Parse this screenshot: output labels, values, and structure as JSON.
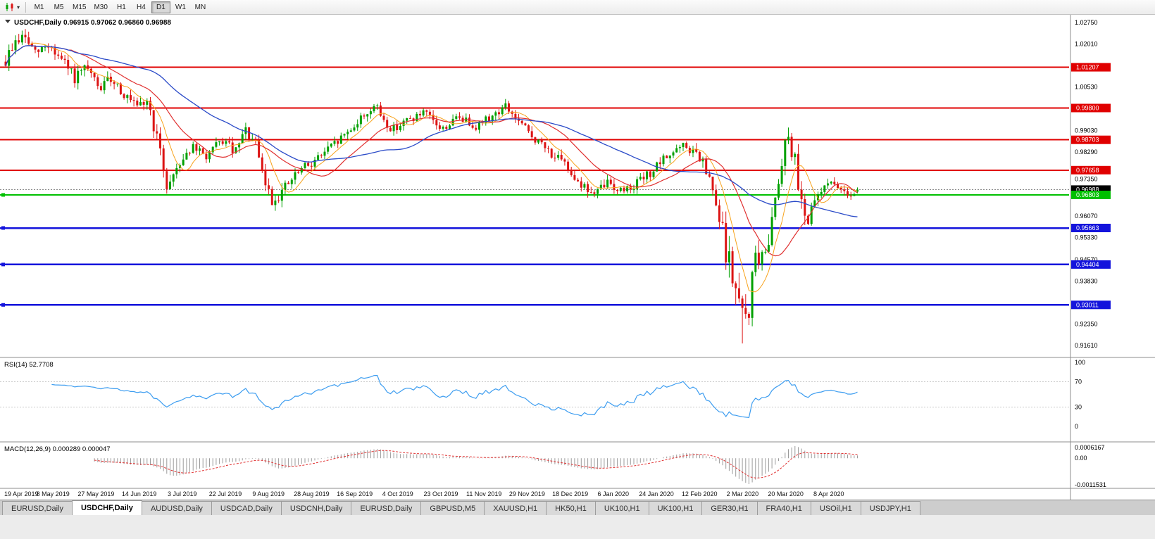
{
  "toolbar": {
    "timeframes": [
      {
        "label": "M1",
        "active": false
      },
      {
        "label": "M5",
        "active": false
      },
      {
        "label": "M15",
        "active": false
      },
      {
        "label": "M30",
        "active": false
      },
      {
        "label": "H1",
        "active": false
      },
      {
        "label": "H4",
        "active": false
      },
      {
        "label": "D1",
        "active": true
      },
      {
        "label": "W1",
        "active": false
      },
      {
        "label": "MN",
        "active": false
      }
    ]
  },
  "chart": {
    "title_line": "USDCHF,Daily 0.96915 0.97062 0.96860 0.96988",
    "rsi_label_line": "RSI(14) 52.7708",
    "macd_label_line": "MACD(12,26,9) 0.000289 0.000047"
  },
  "chart_data": {
    "type": "candlestick",
    "symbol": "USDCHF",
    "timeframe": "Daily",
    "last_candle": {
      "o": 0.96915,
      "h": 0.97062,
      "l": 0.9686,
      "c": 0.96988
    },
    "current_price": 0.96988,
    "low_extreme": 0.9168,
    "price_axis": {
      "min": 0.9161,
      "max": 1.0275,
      "ticks": [
        "1.02750",
        "1.02010",
        "1.00530",
        "0.99030",
        "0.98290",
        "0.97350",
        "0.96070",
        "0.95330",
        "0.94570",
        "0.93830",
        "0.92350",
        "0.91610"
      ]
    },
    "h_lines": {
      "red": [
        1.01207,
        0.998,
        0.98703,
        0.97658
      ],
      "green": [
        0.96803
      ],
      "blue": [
        0.95663,
        0.94404,
        0.93011
      ]
    },
    "n_candles": 260,
    "price_path": [
      [
        0.0,
        1.014,
        0.006
      ],
      [
        0.01,
        1.0205,
        0.0055
      ],
      [
        0.022,
        1.0228,
        0.005
      ],
      [
        0.035,
        1.0165,
        0.005
      ],
      [
        0.05,
        1.02,
        0.005
      ],
      [
        0.068,
        1.0135,
        0.005
      ],
      [
        0.082,
        1.008,
        0.0055
      ],
      [
        0.095,
        1.0115,
        0.005
      ],
      [
        0.11,
        1.0045,
        0.005
      ],
      [
        0.125,
        1.0085,
        0.0048
      ],
      [
        0.142,
        1.0015,
        0.0048
      ],
      [
        0.155,
        0.9975,
        0.0048
      ],
      [
        0.166,
        1.0008,
        0.0045
      ],
      [
        0.178,
        0.987,
        0.006
      ],
      [
        0.19,
        0.9705,
        0.006
      ],
      [
        0.202,
        0.9785,
        0.005
      ],
      [
        0.218,
        0.9845,
        0.0042
      ],
      [
        0.235,
        0.9812,
        0.0042
      ],
      [
        0.255,
        0.9868,
        0.0042
      ],
      [
        0.27,
        0.9825,
        0.0045
      ],
      [
        0.281,
        0.9902,
        0.0048
      ],
      [
        0.293,
        0.9855,
        0.005
      ],
      [
        0.302,
        0.9745,
        0.006
      ],
      [
        0.313,
        0.9658,
        0.0058
      ],
      [
        0.328,
        0.9705,
        0.005
      ],
      [
        0.345,
        0.9762,
        0.0045
      ],
      [
        0.365,
        0.9805,
        0.004
      ],
      [
        0.385,
        0.9852,
        0.004
      ],
      [
        0.405,
        0.9908,
        0.004
      ],
      [
        0.422,
        0.9958,
        0.004
      ],
      [
        0.433,
        0.9988,
        0.004
      ],
      [
        0.452,
        0.9905,
        0.004
      ],
      [
        0.472,
        0.9938,
        0.0036
      ],
      [
        0.492,
        0.9962,
        0.0034
      ],
      [
        0.512,
        0.9905,
        0.0038
      ],
      [
        0.532,
        0.995,
        0.0034
      ],
      [
        0.552,
        0.9918,
        0.0034
      ],
      [
        0.572,
        0.9955,
        0.0036
      ],
      [
        0.587,
        0.9986,
        0.004
      ],
      [
        0.603,
        0.9928,
        0.004
      ],
      [
        0.623,
        0.9868,
        0.004
      ],
      [
        0.643,
        0.9818,
        0.004
      ],
      [
        0.662,
        0.9768,
        0.0042
      ],
      [
        0.677,
        0.9712,
        0.0048
      ],
      [
        0.692,
        0.9678,
        0.0048
      ],
      [
        0.706,
        0.9726,
        0.004
      ],
      [
        0.722,
        0.9695,
        0.004
      ],
      [
        0.738,
        0.9716,
        0.004
      ],
      [
        0.754,
        0.9748,
        0.004
      ],
      [
        0.768,
        0.9788,
        0.004
      ],
      [
        0.782,
        0.9828,
        0.004
      ],
      [
        0.796,
        0.9846,
        0.0042
      ],
      [
        0.81,
        0.9824,
        0.005
      ],
      [
        0.823,
        0.9758,
        0.007
      ],
      [
        0.836,
        0.9615,
        0.01
      ],
      [
        0.849,
        0.9448,
        0.012
      ],
      [
        0.859,
        0.9328,
        0.013
      ],
      [
        0.866,
        0.9242,
        0.014
      ],
      [
        0.873,
        0.9295,
        0.012
      ],
      [
        0.881,
        0.9492,
        0.012
      ],
      [
        0.889,
        0.9438,
        0.01
      ],
      [
        0.897,
        0.9562,
        0.01
      ],
      [
        0.905,
        0.9702,
        0.01
      ],
      [
        0.913,
        0.9845,
        0.009
      ],
      [
        0.919,
        0.9892,
        0.008
      ],
      [
        0.927,
        0.9788,
        0.008
      ],
      [
        0.935,
        0.9655,
        0.008
      ],
      [
        0.943,
        0.9588,
        0.007
      ],
      [
        0.951,
        0.9662,
        0.006
      ],
      [
        0.959,
        0.97,
        0.005
      ],
      [
        0.967,
        0.9745,
        0.005
      ],
      [
        0.975,
        0.9688,
        0.0048
      ],
      [
        0.983,
        0.9712,
        0.0042
      ],
      [
        0.991,
        0.9678,
        0.004
      ],
      [
        1.0,
        0.9699,
        0.004
      ]
    ],
    "x_axis_dates": [
      "19 Apr 2019",
      "8 May 2019",
      "27 May 2019",
      "14 Jun 2019",
      "3 Jul 2019",
      "22 Jul 2019",
      "9 Aug 2019",
      "28 Aug 2019",
      "16 Sep 2019",
      "4 Oct 2019",
      "23 Oct 2019",
      "11 Nov 2019",
      "29 Nov 2019",
      "18 Dec 2019",
      "6 Jan 2020",
      "24 Jan 2020",
      "12 Feb 2020",
      "2 Mar 2020",
      "20 Mar 2020",
      "8 Apr 2020"
    ],
    "rsi": {
      "label": "RSI(14)",
      "value": "52.7708",
      "levels": [
        "100",
        "70",
        "30",
        "0"
      ]
    },
    "macd": {
      "label": "MACD(12,26,9)",
      "values": "0.000289 0.000047",
      "axis": [
        "0.0006167",
        "0.00",
        "-0.0011531"
      ]
    }
  },
  "colors": {
    "candle_up": "#00a000",
    "candle_down": "#dc1414",
    "ma_fast": "#f7a21b",
    "ma_mid": "#e03030",
    "ma_slow": "#2b4bc8",
    "line_red": "#e00000",
    "line_green": "#00c000",
    "line_blue": "#1414dc",
    "rsi_line": "#3d9df0",
    "macd_hist": "#9b9b9b",
    "macd_signal": "#e03030"
  },
  "tabs": [
    {
      "label": "EURUSD,Daily",
      "active": false
    },
    {
      "label": "USDCHF,Daily",
      "active": true
    },
    {
      "label": "AUDUSD,Daily",
      "active": false
    },
    {
      "label": "USDCAD,Daily",
      "active": false
    },
    {
      "label": "USDCNH,Daily",
      "active": false
    },
    {
      "label": "EURUSD,Daily",
      "active": false
    },
    {
      "label": "GBPUSD,M5",
      "active": false
    },
    {
      "label": "XAUUSD,H1",
      "active": false
    },
    {
      "label": "HK50,H1",
      "active": false
    },
    {
      "label": "UK100,H1",
      "active": false
    },
    {
      "label": "UK100,H1",
      "active": false
    },
    {
      "label": "GER30,H1",
      "active": false
    },
    {
      "label": "FRA40,H1",
      "active": false
    },
    {
      "label": "USOil,H1",
      "active": false
    },
    {
      "label": "USDJPY,H1",
      "active": false
    }
  ]
}
